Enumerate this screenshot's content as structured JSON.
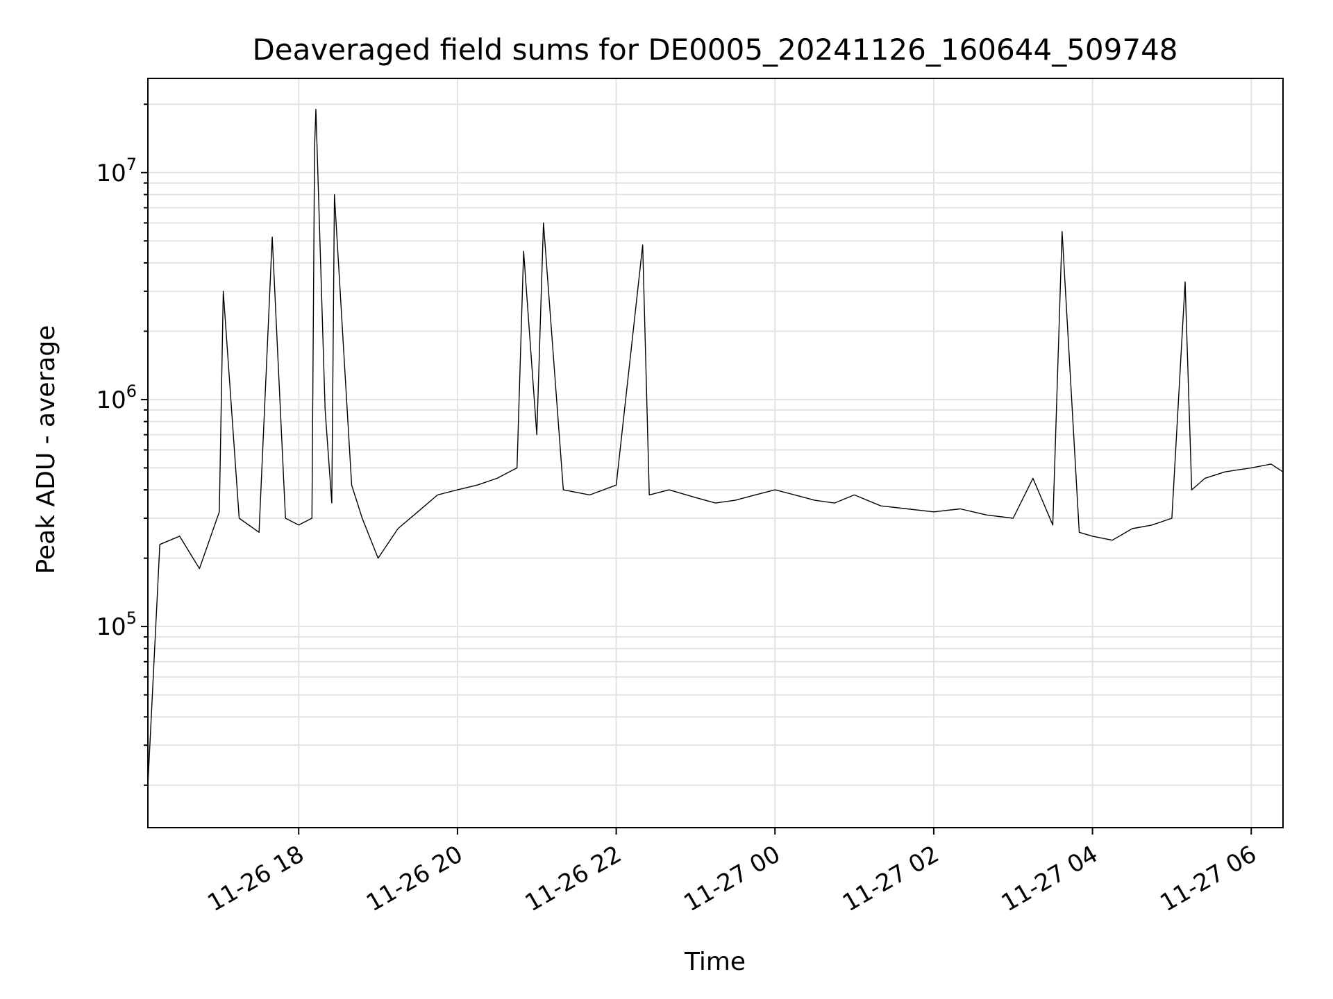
{
  "chart_data": {
    "type": "line",
    "title": "Deaveraged field sums for DE0005_20241126_160644_509748",
    "xlabel": "Time",
    "ylabel": "Peak ADU - average",
    "y_scale": "log",
    "xlim": [
      "11-26 16:06",
      "11-27 06:24"
    ],
    "ylim": [
      13000,
      26000000
    ],
    "x_ticks": [
      {
        "value": "11-26 18:00",
        "label": "11-26 18"
      },
      {
        "value": "11-26 20:00",
        "label": "11-26 20"
      },
      {
        "value": "11-26 22:00",
        "label": "11-26 22"
      },
      {
        "value": "11-27 00:00",
        "label": "11-27 00"
      },
      {
        "value": "11-27 02:00",
        "label": "11-27 02"
      },
      {
        "value": "11-27 04:00",
        "label": "11-27 04"
      },
      {
        "value": "11-27 06:00",
        "label": "11-27 06"
      }
    ],
    "y_ticks": [
      {
        "value": 100000,
        "base": "10",
        "exp": "5"
      },
      {
        "value": 1000000,
        "base": "10",
        "exp": "6"
      },
      {
        "value": 10000000,
        "base": "10",
        "exp": "7"
      }
    ],
    "grid": true,
    "line_color": "#000000",
    "series": [
      {
        "x": [
          "11-26 16:06",
          "11-26 16:15",
          "11-26 16:30",
          "11-26 16:45",
          "11-26 17:00",
          "11-26 17:03",
          "11-26 17:15",
          "11-26 17:30",
          "11-26 17:40",
          "11-26 17:50",
          "11-26 18:00",
          "11-26 18:10",
          "11-26 18:12",
          "11-26 18:13",
          "11-26 18:20",
          "11-26 18:25",
          "11-26 18:27",
          "11-26 18:40",
          "11-26 18:48",
          "11-26 19:00",
          "11-26 19:15",
          "11-26 19:30",
          "11-26 19:45",
          "11-26 20:00",
          "11-26 20:15",
          "11-26 20:30",
          "11-26 20:45",
          "11-26 20:50",
          "11-26 21:00",
          "11-26 21:05",
          "11-26 21:20",
          "11-26 21:40",
          "11-26 22:00",
          "11-26 22:20",
          "11-26 22:25",
          "11-26 22:40",
          "11-26 23:00",
          "11-26 23:15",
          "11-26 23:30",
          "11-26 23:45",
          "11-27 00:00",
          "11-27 00:15",
          "11-27 00:30",
          "11-27 00:45",
          "11-27 01:00",
          "11-27 01:20",
          "11-27 01:40",
          "11-27 02:00",
          "11-27 02:20",
          "11-27 02:40",
          "11-27 03:00",
          "11-27 03:15",
          "11-27 03:30",
          "11-27 03:37",
          "11-27 03:50",
          "11-27 04:00",
          "11-27 04:15",
          "11-27 04:30",
          "11-27 04:45",
          "11-27 05:00",
          "11-27 05:10",
          "11-27 05:15",
          "11-27 05:25",
          "11-27 05:40",
          "11-27 06:00",
          "11-27 06:15",
          "11-27 06:24"
        ],
        "y": [
          20000,
          230000,
          250000,
          180000,
          320000,
          3000000,
          300000,
          260000,
          5200000,
          300000,
          280000,
          300000,
          13000000,
          19000000,
          900000,
          350000,
          8000000,
          420000,
          300000,
          200000,
          270000,
          320000,
          380000,
          400000,
          420000,
          450000,
          500000,
          4500000,
          700000,
          6000000,
          400000,
          380000,
          420000,
          4800000,
          380000,
          400000,
          370000,
          350000,
          360000,
          380000,
          400000,
          380000,
          360000,
          350000,
          380000,
          340000,
          330000,
          320000,
          330000,
          310000,
          300000,
          450000,
          280000,
          5500000,
          260000,
          250000,
          240000,
          270000,
          280000,
          300000,
          3300000,
          400000,
          450000,
          480000,
          500000,
          520000,
          480000
        ]
      }
    ]
  }
}
